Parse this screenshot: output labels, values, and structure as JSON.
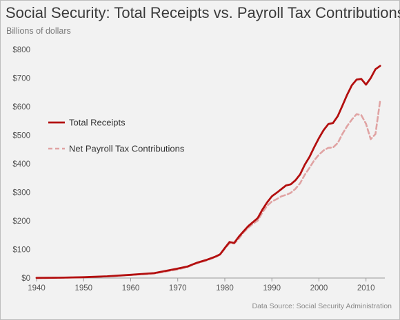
{
  "chart_data": {
    "type": "line",
    "title": "Social Security: Total Receipts vs. Payroll Tax Contributions",
    "subtitle": "Billions  of dollars",
    "source": "Data Source: Social Security Administration",
    "xlim": [
      1940,
      2014
    ],
    "ylim": [
      0,
      800
    ],
    "x_ticks": [
      1940,
      1950,
      1960,
      1970,
      1980,
      1990,
      2000,
      2010
    ],
    "y_ticks": [
      {
        "value": 0,
        "label": "$0"
      },
      {
        "value": 100,
        "label": "$100"
      },
      {
        "value": 200,
        "label": "$200"
      },
      {
        "value": 300,
        "label": "$300"
      },
      {
        "value": 400,
        "label": "$400"
      },
      {
        "value": 500,
        "label": "$500"
      },
      {
        "value": 600,
        "label": "$600"
      },
      {
        "value": 700,
        "label": "$700"
      },
      {
        "value": 800,
        "label": "$800"
      }
    ],
    "grid": false,
    "legend_position": "left-middle",
    "colors": {
      "total": "#b30f0f",
      "payroll": "#e0a3a3"
    },
    "series": [
      {
        "name": "Total Receipts",
        "style": "solid",
        "points": [
          [
            1940,
            0.4
          ],
          [
            1945,
            1.3
          ],
          [
            1950,
            2.9
          ],
          [
            1955,
            6
          ],
          [
            1960,
            11.4
          ],
          [
            1965,
            17
          ],
          [
            1970,
            33
          ],
          [
            1972,
            40
          ],
          [
            1974,
            53
          ],
          [
            1976,
            63
          ],
          [
            1978,
            75
          ],
          [
            1979,
            83
          ],
          [
            1980,
            105
          ],
          [
            1981,
            126
          ],
          [
            1982,
            123
          ],
          [
            1983,
            145
          ],
          [
            1984,
            164
          ],
          [
            1985,
            182
          ],
          [
            1986,
            196
          ],
          [
            1987,
            210
          ],
          [
            1988,
            240
          ],
          [
            1989,
            265
          ],
          [
            1990,
            286
          ],
          [
            1991,
            298
          ],
          [
            1992,
            311
          ],
          [
            1993,
            324
          ],
          [
            1994,
            328
          ],
          [
            1995,
            342
          ],
          [
            1996,
            363
          ],
          [
            1997,
            397
          ],
          [
            1998,
            424
          ],
          [
            1999,
            458
          ],
          [
            2000,
            490
          ],
          [
            2001,
            518
          ],
          [
            2002,
            539
          ],
          [
            2003,
            543
          ],
          [
            2004,
            567
          ],
          [
            2005,
            604
          ],
          [
            2006,
            642
          ],
          [
            2007,
            675
          ],
          [
            2008,
            695
          ],
          [
            2009,
            697
          ],
          [
            2010,
            677
          ],
          [
            2011,
            700
          ],
          [
            2012,
            731
          ],
          [
            2013,
            743
          ]
        ]
      },
      {
        "name": "Net Payroll Tax Contributions",
        "style": "dashed",
        "points": [
          [
            1940,
            0.3
          ],
          [
            1945,
            1.2
          ],
          [
            1950,
            2.7
          ],
          [
            1955,
            5.5
          ],
          [
            1960,
            10.6
          ],
          [
            1965,
            16
          ],
          [
            1970,
            30
          ],
          [
            1972,
            38
          ],
          [
            1974,
            51
          ],
          [
            1976,
            61
          ],
          [
            1978,
            73
          ],
          [
            1979,
            82
          ],
          [
            1980,
            103
          ],
          [
            1981,
            122
          ],
          [
            1982,
            121
          ],
          [
            1983,
            138
          ],
          [
            1984,
            160
          ],
          [
            1985,
            176
          ],
          [
            1986,
            190
          ],
          [
            1987,
            201
          ],
          [
            1988,
            230
          ],
          [
            1989,
            253
          ],
          [
            1990,
            268
          ],
          [
            1991,
            276
          ],
          [
            1992,
            286
          ],
          [
            1993,
            291
          ],
          [
            1994,
            298
          ],
          [
            1995,
            312
          ],
          [
            1996,
            332
          ],
          [
            1997,
            362
          ],
          [
            1998,
            386
          ],
          [
            1999,
            412
          ],
          [
            2000,
            432
          ],
          [
            2001,
            447
          ],
          [
            2002,
            456
          ],
          [
            2003,
            457
          ],
          [
            2004,
            473
          ],
          [
            2005,
            505
          ],
          [
            2006,
            532
          ],
          [
            2007,
            555
          ],
          [
            2008,
            574
          ],
          [
            2009,
            570
          ],
          [
            2010,
            540
          ],
          [
            2011,
            486
          ],
          [
            2012,
            504
          ],
          [
            2013,
            621
          ]
        ]
      }
    ]
  }
}
